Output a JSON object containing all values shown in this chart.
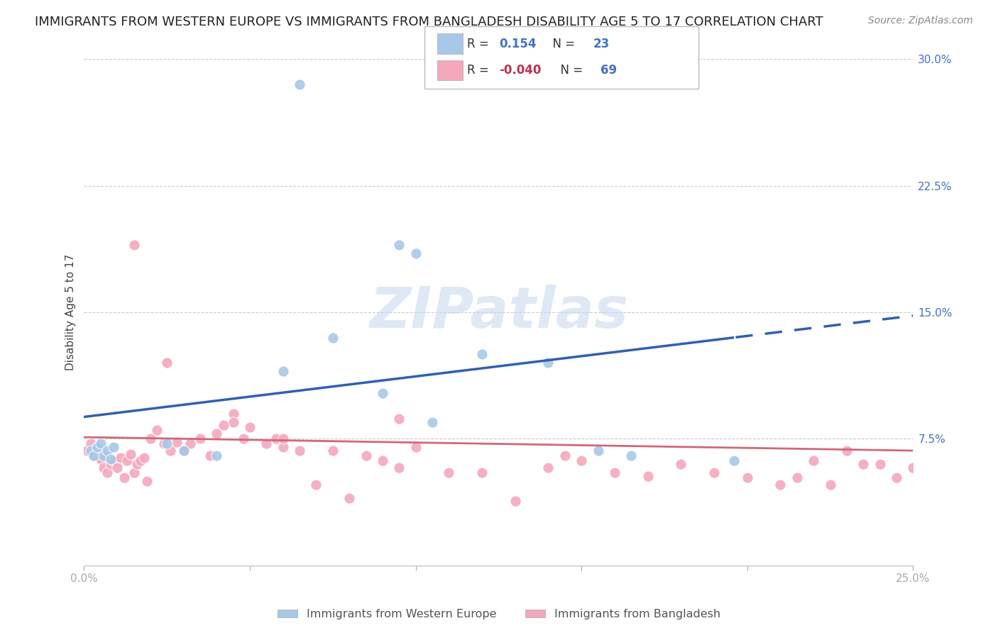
{
  "title": "IMMIGRANTS FROM WESTERN EUROPE VS IMMIGRANTS FROM BANGLADESH DISABILITY AGE 5 TO 17 CORRELATION CHART",
  "source": "Source: ZipAtlas.com",
  "ylabel": "Disability Age 5 to 17",
  "xlim": [
    0.0,
    0.25
  ],
  "ylim": [
    0.0,
    0.3
  ],
  "watermark": "ZIPatlas",
  "blue_R": "0.154",
  "blue_N": "23",
  "pink_R": "-0.040",
  "pink_N": "69",
  "blue_color": "#a8c8e8",
  "pink_color": "#f4a8bc",
  "blue_line_color": "#3060b0",
  "pink_line_color": "#d06878",
  "blue_line_start_y": 0.088,
  "blue_line_end_y": 0.148,
  "blue_line_solid_end_x": 0.196,
  "pink_line_start_y": 0.076,
  "pink_line_end_y": 0.068,
  "blue_scatter_x": [
    0.002,
    0.003,
    0.004,
    0.005,
    0.006,
    0.007,
    0.008,
    0.009,
    0.025,
    0.03,
    0.04,
    0.06,
    0.065,
    0.075,
    0.09,
    0.095,
    0.1,
    0.105,
    0.12,
    0.14,
    0.155,
    0.165,
    0.196
  ],
  "blue_scatter_y": [
    0.068,
    0.065,
    0.07,
    0.072,
    0.065,
    0.068,
    0.063,
    0.07,
    0.072,
    0.068,
    0.065,
    0.115,
    0.285,
    0.135,
    0.102,
    0.19,
    0.185,
    0.085,
    0.125,
    0.12,
    0.068,
    0.065,
    0.062
  ],
  "pink_scatter_x": [
    0.001,
    0.002,
    0.003,
    0.004,
    0.005,
    0.006,
    0.007,
    0.008,
    0.009,
    0.01,
    0.011,
    0.012,
    0.013,
    0.014,
    0.015,
    0.016,
    0.017,
    0.018,
    0.019,
    0.02,
    0.022,
    0.024,
    0.026,
    0.028,
    0.03,
    0.032,
    0.035,
    0.038,
    0.04,
    0.042,
    0.045,
    0.048,
    0.05,
    0.055,
    0.058,
    0.06,
    0.065,
    0.07,
    0.075,
    0.08,
    0.085,
    0.09,
    0.095,
    0.1,
    0.11,
    0.12,
    0.13,
    0.14,
    0.15,
    0.16,
    0.17,
    0.18,
    0.19,
    0.2,
    0.21,
    0.215,
    0.22,
    0.225,
    0.23,
    0.235,
    0.24,
    0.245,
    0.25,
    0.015,
    0.025,
    0.045,
    0.06,
    0.095,
    0.145
  ],
  "pink_scatter_y": [
    0.068,
    0.072,
    0.065,
    0.07,
    0.063,
    0.058,
    0.055,
    0.06,
    0.062,
    0.058,
    0.064,
    0.052,
    0.062,
    0.066,
    0.055,
    0.06,
    0.062,
    0.064,
    0.05,
    0.075,
    0.08,
    0.072,
    0.068,
    0.073,
    0.068,
    0.072,
    0.075,
    0.065,
    0.078,
    0.083,
    0.09,
    0.075,
    0.082,
    0.072,
    0.075,
    0.07,
    0.068,
    0.048,
    0.068,
    0.04,
    0.065,
    0.062,
    0.058,
    0.07,
    0.055,
    0.055,
    0.038,
    0.058,
    0.062,
    0.055,
    0.053,
    0.06,
    0.055,
    0.052,
    0.048,
    0.052,
    0.062,
    0.048,
    0.068,
    0.06,
    0.06,
    0.052,
    0.058,
    0.19,
    0.12,
    0.085,
    0.075,
    0.087,
    0.065
  ],
  "legend_label_blue": "Immigrants from Western Europe",
  "legend_label_pink": "Immigrants from Bangladesh",
  "grid_color": "#cccccc",
  "background_color": "#ffffff",
  "title_fontsize": 13,
  "source_fontsize": 10,
  "axis_label_fontsize": 11,
  "tick_fontsize": 11,
  "right_tick_color": "#4472c4"
}
